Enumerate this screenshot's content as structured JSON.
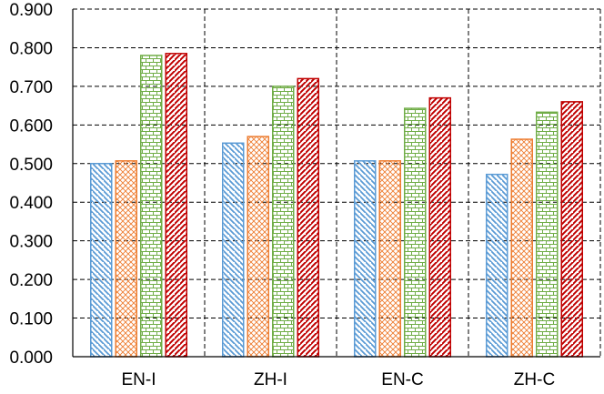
{
  "chart_data": {
    "type": "bar",
    "categories": [
      "EN-I",
      "ZH-I",
      "EN-C",
      "ZH-C"
    ],
    "series": [
      {
        "values": [
          0.5,
          0.553,
          0.507,
          0.472
        ],
        "color": "#5b9bd5",
        "pattern": "diagonal-down"
      },
      {
        "values": [
          0.507,
          0.57,
          0.507,
          0.563
        ],
        "color": "#ed7d31",
        "pattern": "crosshatch"
      },
      {
        "values": [
          0.78,
          0.7,
          0.643,
          0.633
        ],
        "color": "#70ad47",
        "pattern": "brick"
      },
      {
        "values": [
          0.785,
          0.72,
          0.67,
          0.66
        ],
        "color": "#c00000",
        "pattern": "diagonal-up"
      }
    ],
    "yticks": [
      "0.000",
      "0.100",
      "0.200",
      "0.300",
      "0.400",
      "0.500",
      "0.600",
      "0.700",
      "0.800",
      "0.900"
    ],
    "ylim": [
      0,
      0.9
    ],
    "grid": true,
    "legend": "none"
  }
}
